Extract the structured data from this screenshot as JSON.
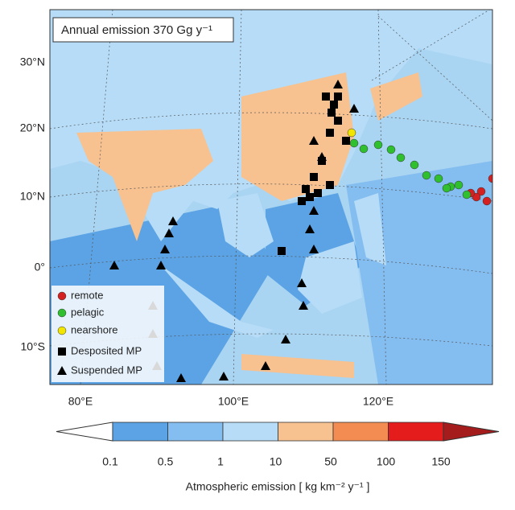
{
  "map": {
    "annotation": "Annual emission 370 Gg y⁻¹",
    "lat_labels": [
      "30°N",
      "20°N",
      "10°N",
      "0°",
      "10°S"
    ],
    "lon_labels": [
      "80°E",
      "100°E",
      "120°E"
    ],
    "legend": [
      {
        "label": "remote",
        "color": "#d42020",
        "shape": "circle"
      },
      {
        "label": "pelagic",
        "color": "#2fbf2f",
        "shape": "circle"
      },
      {
        "label": "nearshore",
        "color": "#f2e600",
        "shape": "circle"
      },
      {
        "label": "Desposited MP",
        "color": "#000000",
        "shape": "square"
      },
      {
        "label": "Suspended MP",
        "color": "#000000",
        "shape": "triangle"
      }
    ],
    "colorbar": {
      "label": "Atmospheric emission [ kg km⁻² y⁻¹ ]",
      "ticks": [
        "0.1",
        "0.5",
        "1",
        "10",
        "50",
        "100",
        "150"
      ],
      "colors": [
        "#ffffff",
        "#5ba3e4",
        "#84bdf0",
        "#b6dcf7",
        "#f7c290",
        "#f28c52",
        "#e41c1c",
        "#a51c1c"
      ]
    }
  }
}
